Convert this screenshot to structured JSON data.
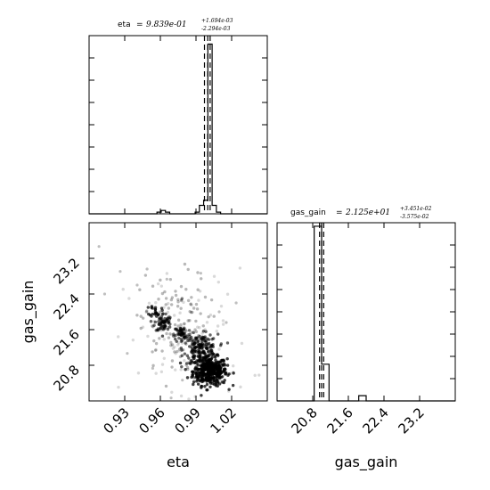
{
  "chart_data": [
    {
      "type": "histogram",
      "panel": "eta-marginal",
      "title_param": "eta",
      "title_value": "9.839e-01",
      "title_plus": "+1.694e-03",
      "title_minus": "-2.294e-03",
      "bins": [
        0.9,
        0.903,
        0.906,
        0.909,
        0.912,
        0.915,
        0.918,
        0.921,
        0.924,
        0.927,
        0.93,
        0.933,
        0.936,
        0.939,
        0.942,
        0.945,
        0.948,
        0.951,
        0.954,
        0.957,
        0.96,
        0.963,
        0.966,
        0.969,
        0.972,
        0.975,
        0.978,
        0.981,
        0.984,
        0.987,
        0.99,
        0.993,
        0.996,
        0.999,
        1.002,
        1.005,
        1.008,
        1.011,
        1.014,
        1.017,
        1.02,
        1.023,
        1.026
      ],
      "counts": [
        0,
        0,
        0,
        0,
        0,
        0,
        0,
        0,
        0,
        0,
        0,
        0,
        0,
        0,
        0,
        0,
        1,
        2,
        1,
        0,
        0,
        0,
        0,
        0,
        0,
        1,
        5,
        8,
        100,
        5,
        1,
        0,
        0,
        0,
        0,
        0,
        0,
        0,
        0,
        0,
        0,
        0
      ],
      "quantile_lines": [
        0.9816,
        0.9839,
        0.9856
      ],
      "xlim": [
        0.9,
        1.026
      ],
      "ylim": [
        0,
        105
      ],
      "grid": false
    },
    {
      "type": "histogram",
      "panel": "gas_gain-marginal",
      "title_param": "gas_gain",
      "title_value": "2.125e+01",
      "title_plus": "+3.451e-02",
      "title_minus": "-3.575e-02",
      "bins": [
        20.5,
        20.625,
        20.75,
        20.875,
        21.0,
        21.125,
        21.25,
        21.375,
        21.5,
        21.625,
        21.75,
        21.875,
        22.0,
        22.125,
        22.25,
        22.375,
        22.5,
        22.625,
        22.75,
        22.875,
        23.0,
        23.125,
        23.25,
        23.375,
        23.5
      ],
      "counts": [
        0,
        0,
        0,
        0,
        0,
        100,
        21,
        0,
        0,
        0,
        0,
        3,
        0,
        0,
        0,
        0,
        0,
        0,
        0,
        0,
        0,
        0,
        0,
        0
      ],
      "quantile_lines": [
        21.215,
        21.25,
        21.285
      ],
      "xlim": [
        20.5,
        23.5
      ],
      "ylim": [
        0,
        102
      ],
      "xticks": [
        "20.8",
        "21.6",
        "22.4",
        "23.2"
      ],
      "xlabel": "gas_gain",
      "grid": false
    },
    {
      "type": "scatter",
      "panel": "eta-vs-gas_gain",
      "xlim": [
        0.9,
        1.026
      ],
      "ylim": [
        20.5,
        23.5
      ],
      "xticks": [
        "0.93",
        "0.96",
        "0.99",
        "1.02"
      ],
      "yticks": [
        "20.8",
        "21.6",
        "22.4",
        "23.2"
      ],
      "xlabel": "eta",
      "ylabel": "gas_gain",
      "clusters": [
        {
          "x": 0.9855,
          "y": 21.0,
          "sx": 0.006,
          "sy": 0.12,
          "n": 420,
          "opacity": 0.75
        },
        {
          "x": 0.979,
          "y": 21.38,
          "sx": 0.006,
          "sy": 0.12,
          "n": 170,
          "opacity": 0.6
        },
        {
          "x": 0.966,
          "y": 21.62,
          "sx": 0.003,
          "sy": 0.08,
          "n": 55,
          "opacity": 0.55
        },
        {
          "x": 0.9525,
          "y": 21.82,
          "sx": 0.003,
          "sy": 0.08,
          "n": 60,
          "opacity": 0.6
        },
        {
          "x": 0.947,
          "y": 22.02,
          "sx": 0.002,
          "sy": 0.05,
          "n": 22,
          "opacity": 0.7
        },
        {
          "x": 0.96,
          "y": 21.75,
          "sx": 0.012,
          "sy": 0.45,
          "n": 130,
          "opacity": 0.28
        },
        {
          "x": 0.97,
          "y": 21.5,
          "sx": 0.022,
          "sy": 0.6,
          "n": 90,
          "opacity": 0.15
        }
      ],
      "outliers": [
        {
          "x": 0.907,
          "y": 23.1
        },
        {
          "x": 0.922,
          "y": 22.68
        },
        {
          "x": 0.941,
          "y": 22.72
        },
        {
          "x": 0.911,
          "y": 22.3
        },
        {
          "x": 0.934,
          "y": 22.45
        },
        {
          "x": 0.979,
          "y": 22.65
        },
        {
          "x": 1.004,
          "y": 22.15
        },
        {
          "x": 0.997,
          "y": 21.82
        },
        {
          "x": 0.945,
          "y": 21.05
        },
        {
          "x": 0.958,
          "y": 20.55
        },
        {
          "x": 1.002,
          "y": 20.98
        },
        {
          "x": 0.927,
          "y": 21.3
        },
        {
          "x": 0.966,
          "y": 20.85
        },
        {
          "x": 0.992,
          "y": 22.0
        },
        {
          "x": 0.955,
          "y": 22.55
        }
      ]
    }
  ]
}
